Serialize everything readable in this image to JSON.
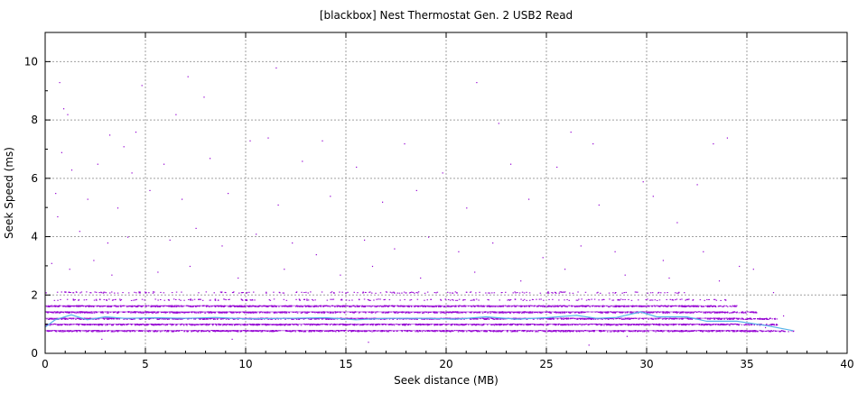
{
  "chart_data": {
    "type": "scatter",
    "title": "[blackbox] Nest Thermostat Gen. 2 USB2 Read",
    "xlabel": "Seek distance (MB)",
    "ylabel": "Seek Speed (ms)",
    "xlim": [
      0,
      40
    ],
    "ylim": [
      0,
      11
    ],
    "xticks": [
      0,
      5,
      10,
      15,
      20,
      25,
      30,
      35,
      40
    ],
    "yticks": [
      0,
      2,
      4,
      6,
      8,
      10
    ],
    "grid": true,
    "colors": {
      "points": "#9400d3",
      "trend": "#56b4e9",
      "grid": "#a0a0a0"
    },
    "bands": [
      {
        "speed": 0.78,
        "x_max": 37.3
      },
      {
        "speed": 1.0,
        "x_max": 36.5
      },
      {
        "speed": 1.2,
        "x_max": 36.5
      },
      {
        "speed": 1.42,
        "x_max": 35.5
      },
      {
        "speed": 1.63,
        "x_max": 34.5
      },
      {
        "speed": 1.85,
        "x_max": 34.0
      },
      {
        "speed": 2.1,
        "x_max": 32.0
      }
    ],
    "outliers": [
      [
        0.7,
        9.3
      ],
      [
        0.9,
        8.4
      ],
      [
        1.1,
        8.2
      ],
      [
        4.8,
        9.2
      ],
      [
        7.1,
        9.5
      ],
      [
        6.5,
        8.2
      ],
      [
        7.9,
        8.8
      ],
      [
        11.5,
        9.8
      ],
      [
        21.5,
        9.3
      ],
      [
        3.2,
        7.5
      ],
      [
        4.5,
        7.6
      ],
      [
        3.9,
        7.1
      ],
      [
        10.2,
        7.3
      ],
      [
        11.1,
        7.4
      ],
      [
        13.8,
        7.3
      ],
      [
        17.9,
        7.2
      ],
      [
        22.6,
        7.9
      ],
      [
        26.2,
        7.6
      ],
      [
        27.3,
        7.2
      ],
      [
        33.3,
        7.2
      ],
      [
        34.0,
        7.4
      ],
      [
        0.8,
        6.9
      ],
      [
        1.3,
        6.3
      ],
      [
        2.6,
        6.5
      ],
      [
        4.3,
        6.2
      ],
      [
        5.9,
        6.5
      ],
      [
        8.2,
        6.7
      ],
      [
        12.8,
        6.6
      ],
      [
        15.5,
        6.4
      ],
      [
        19.8,
        6.2
      ],
      [
        23.2,
        6.5
      ],
      [
        25.5,
        6.4
      ],
      [
        29.8,
        5.9
      ],
      [
        32.5,
        5.8
      ],
      [
        0.5,
        5.5
      ],
      [
        2.1,
        5.3
      ],
      [
        3.6,
        5.0
      ],
      [
        5.2,
        5.6
      ],
      [
        6.8,
        5.3
      ],
      [
        9.1,
        5.5
      ],
      [
        11.6,
        5.1
      ],
      [
        14.2,
        5.4
      ],
      [
        16.8,
        5.2
      ],
      [
        18.5,
        5.6
      ],
      [
        21.0,
        5.0
      ],
      [
        24.1,
        5.3
      ],
      [
        27.6,
        5.1
      ],
      [
        30.3,
        5.4
      ],
      [
        31.5,
        4.5
      ],
      [
        0.6,
        4.7
      ],
      [
        1.7,
        4.2
      ],
      [
        3.1,
        3.8
      ],
      [
        4.1,
        4.0
      ],
      [
        6.2,
        3.9
      ],
      [
        7.5,
        4.3
      ],
      [
        8.8,
        3.7
      ],
      [
        10.5,
        4.1
      ],
      [
        12.3,
        3.8
      ],
      [
        13.5,
        3.4
      ],
      [
        15.9,
        3.9
      ],
      [
        17.4,
        3.6
      ],
      [
        19.1,
        4.0
      ],
      [
        20.6,
        3.5
      ],
      [
        22.3,
        3.8
      ],
      [
        24.8,
        3.3
      ],
      [
        26.7,
        3.7
      ],
      [
        28.4,
        3.5
      ],
      [
        30.8,
        3.2
      ],
      [
        32.8,
        3.5
      ],
      [
        34.6,
        3.0
      ],
      [
        35.3,
        2.9
      ],
      [
        0.3,
        3.1
      ],
      [
        1.2,
        2.9
      ],
      [
        2.4,
        3.2
      ],
      [
        3.3,
        2.7
      ],
      [
        5.6,
        2.8
      ],
      [
        7.2,
        3.0
      ],
      [
        9.6,
        2.6
      ],
      [
        11.9,
        2.9
      ],
      [
        14.7,
        2.7
      ],
      [
        16.3,
        3.0
      ],
      [
        18.7,
        2.6
      ],
      [
        21.4,
        2.8
      ],
      [
        23.7,
        2.5
      ],
      [
        25.9,
        2.9
      ],
      [
        28.9,
        2.7
      ],
      [
        31.1,
        2.6
      ],
      [
        33.6,
        2.5
      ],
      [
        36.3,
        2.1
      ],
      [
        36.8,
        1.3
      ],
      [
        2.8,
        0.5
      ],
      [
        9.3,
        0.5
      ],
      [
        16.1,
        0.4
      ],
      [
        27.1,
        0.3
      ],
      [
        29.0,
        0.6
      ],
      [
        35.9,
        0.9
      ]
    ],
    "trend": {
      "x": [
        0,
        0.5,
        1.3,
        2.1,
        3.0,
        4.0,
        5.5,
        7.0,
        8.5,
        10,
        12,
        14,
        15.5,
        17,
        19,
        20.5,
        22,
        23.5,
        25,
        26.5,
        27.5,
        28.5,
        29.7,
        30.5,
        32,
        33,
        34.5,
        36,
        37.3
      ],
      "y": [
        0.9,
        1.15,
        1.32,
        1.15,
        1.25,
        1.2,
        1.22,
        1.2,
        1.23,
        1.18,
        1.2,
        1.22,
        1.15,
        1.2,
        1.2,
        1.17,
        1.25,
        1.17,
        1.22,
        1.3,
        1.2,
        1.23,
        1.42,
        1.25,
        1.25,
        1.1,
        1.1,
        0.95,
        0.78
      ]
    }
  }
}
